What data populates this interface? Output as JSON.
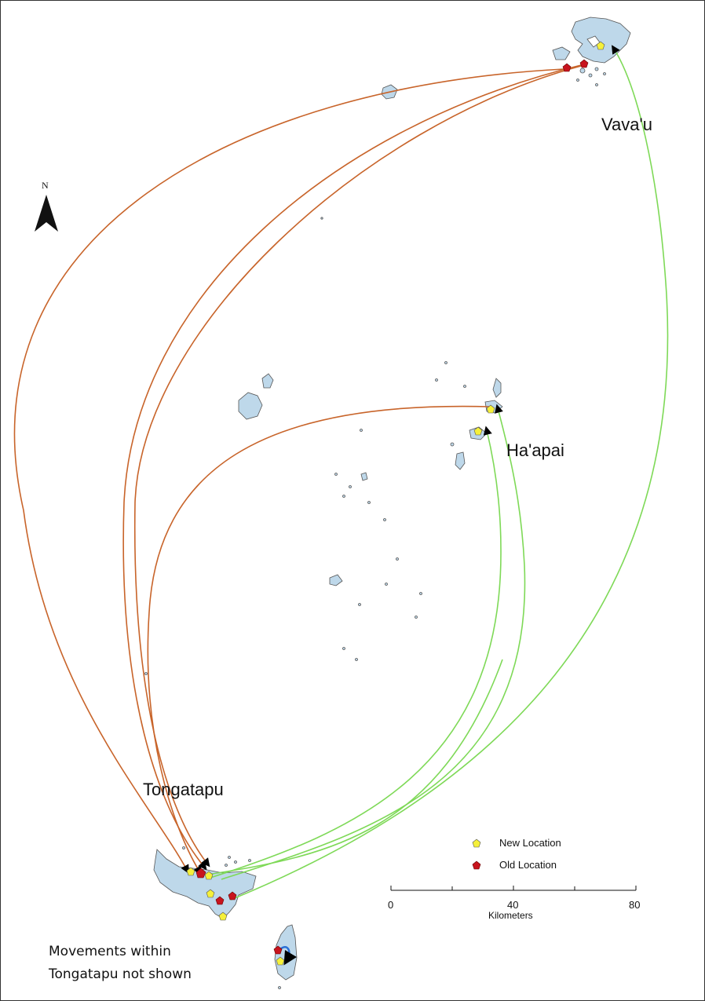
{
  "map": {
    "places": {
      "vavau": "Vava'u",
      "haapai": "Ha'apai",
      "tongatapu": "Tongatapu"
    },
    "north_label": "N",
    "legend": {
      "new_location": "New Location",
      "old_location": "Old Location",
      "new_color": "#f5f03a",
      "old_color": "#c8141e"
    },
    "scale_bar": {
      "tick_0": "0",
      "tick_40": "40",
      "tick_80": "80",
      "unit": "Kilometers"
    },
    "note": {
      "line1": "Movements within",
      "line2": "Tongatapu not shown"
    },
    "colors": {
      "land": "#bed8ea",
      "outbound_track": "#c8642a",
      "return_track": "#7ed957",
      "local_track": "#2a6fd6"
    }
  }
}
